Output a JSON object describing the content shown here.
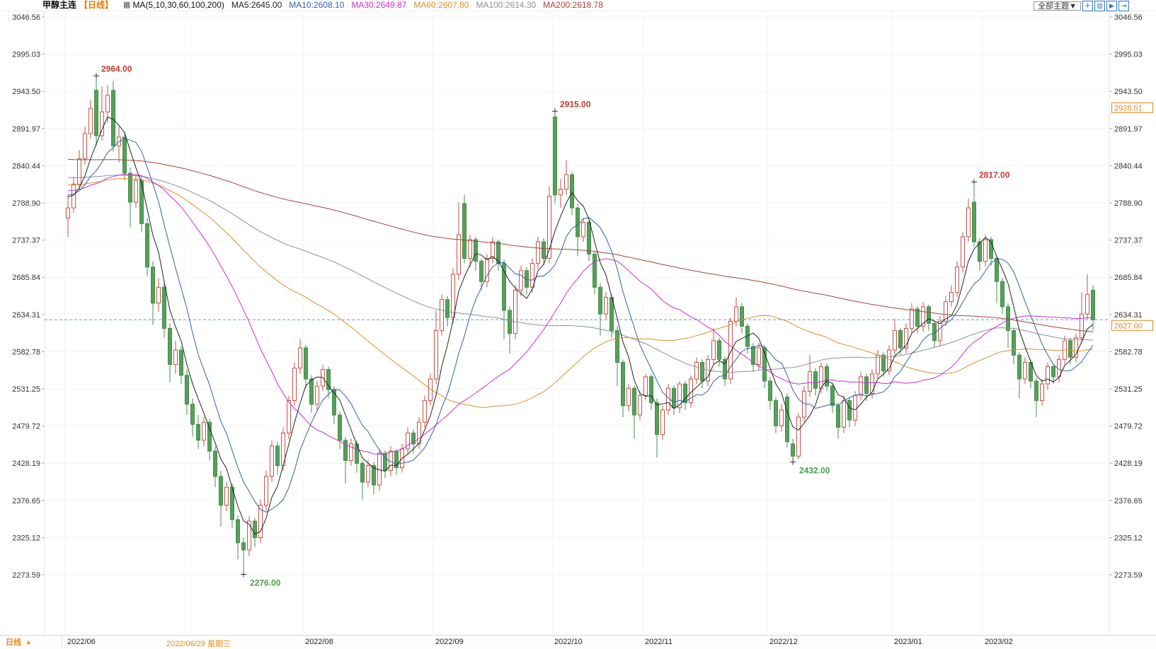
{
  "header": {
    "instrument": "甲醇主连",
    "period_tag": "【日线】",
    "indicator_icon": "▦",
    "ma_caption": "MA(5,10,30,60,100,200)"
  },
  "toolbar": {
    "theme_button": "全部主题▼",
    "icons": [
      {
        "name": "pan-icon",
        "glyph": "✛"
      },
      {
        "name": "scale-axis-icon",
        "glyph": "▥"
      },
      {
        "name": "play-forward-icon",
        "glyph": "▶"
      },
      {
        "name": "jump-latest-icon",
        "glyph": "⇥"
      }
    ]
  },
  "footer": {
    "period_label": "日线",
    "arrow": "▲"
  },
  "axis": {
    "price_levels": [
      3046.56,
      2995.03,
      2943.5,
      2891.97,
      2840.44,
      2788.9,
      2737.37,
      2685.84,
      2634.31,
      2582.78,
      2531.25,
      2479.72,
      2428.19,
      2376.65,
      2325.12,
      2273.59
    ],
    "highlight_labels": [
      {
        "text": "2928.51",
        "price": 2928.51
      },
      {
        "text": "2627.00",
        "price": 2627.0
      }
    ]
  },
  "chart_data": {
    "type": "candlestick",
    "title": "甲醇主连 日线",
    "interval": "daily",
    "ylim": [
      2222.06,
      3046.56
    ],
    "grid": true,
    "last_price": 2627.0,
    "dashed_line_price": 2627.0,
    "months": [
      {
        "label": "2022/06",
        "start_index": 0
      },
      {
        "label": "2022/06/29 星期三",
        "start_index": 21,
        "selected": true
      },
      {
        "label": "2022/08",
        "start_index": 42
      },
      {
        "label": "2022/09",
        "start_index": 65
      },
      {
        "label": "2022/10",
        "start_index": 86
      },
      {
        "label": "2022/11",
        "start_index": 102
      },
      {
        "label": "2022/12",
        "start_index": 124
      },
      {
        "label": "2023/01",
        "start_index": 146
      },
      {
        "label": "2023/02",
        "start_index": 162
      }
    ],
    "annotations": [
      {
        "index": 5,
        "kind": "high",
        "text": "2964.00",
        "price": 2964
      },
      {
        "index": 86,
        "kind": "high",
        "text": "2915.00",
        "price": 2915
      },
      {
        "index": 160,
        "kind": "high",
        "text": "2817.00",
        "price": 2817
      },
      {
        "index": 31,
        "kind": "low",
        "text": "2276.00",
        "price": 2276
      },
      {
        "index": 128,
        "kind": "low",
        "text": "2432.00",
        "price": 2432
      }
    ],
    "ma_lines": [
      {
        "period": 5,
        "label": "MA5:2645.00",
        "value": 2645.0,
        "color": "#222222"
      },
      {
        "period": 10,
        "label": "MA10:2608.10",
        "value": 2608.1,
        "color": "#2f62a8"
      },
      {
        "period": 30,
        "label": "MA30:2649.87",
        "value": 2649.87,
        "color": "#cc2fcf"
      },
      {
        "period": 60,
        "label": "MA60:2607.80",
        "value": 2607.8,
        "color": "#db8f2d"
      },
      {
        "period": 100,
        "label": "MA100:2614.30",
        "value": 2614.3,
        "color": "#8a9099"
      },
      {
        "period": 200,
        "label": "MA200:2618.78",
        "value": 2618.78,
        "color": "#a8433a"
      }
    ],
    "candles": [
      [
        2768,
        2800,
        2742,
        2782
      ],
      [
        2782,
        2825,
        2775,
        2815
      ],
      [
        2815,
        2862,
        2808,
        2850
      ],
      [
        2850,
        2895,
        2842,
        2885
      ],
      [
        2885,
        2932,
        2878,
        2920
      ],
      [
        2945,
        2964,
        2868,
        2882
      ],
      [
        2882,
        2950,
        2875,
        2915
      ],
      [
        2915,
        2952,
        2900,
        2938
      ],
      [
        2945,
        2958,
        2860,
        2868
      ],
      [
        2868,
        2895,
        2845,
        2880
      ],
      [
        2880,
        2888,
        2820,
        2830
      ],
      [
        2830,
        2838,
        2755,
        2790
      ],
      [
        2790,
        2828,
        2782,
        2820
      ],
      [
        2820,
        2825,
        2748,
        2760
      ],
      [
        2760,
        2768,
        2688,
        2700
      ],
      [
        2700,
        2708,
        2620,
        2650
      ],
      [
        2650,
        2685,
        2638,
        2672
      ],
      [
        2672,
        2678,
        2602,
        2615
      ],
      [
        2615,
        2622,
        2540,
        2565
      ],
      [
        2565,
        2598,
        2552,
        2585
      ],
      [
        2585,
        2590,
        2538,
        2550
      ],
      [
        2550,
        2558,
        2495,
        2510
      ],
      [
        2510,
        2518,
        2465,
        2482
      ],
      [
        2482,
        2495,
        2448,
        2460
      ],
      [
        2460,
        2492,
        2452,
        2485
      ],
      [
        2485,
        2490,
        2432,
        2445
      ],
      [
        2445,
        2452,
        2395,
        2410
      ],
      [
        2410,
        2418,
        2340,
        2370
      ],
      [
        2370,
        2402,
        2362,
        2395
      ],
      [
        2395,
        2400,
        2338,
        2350
      ],
      [
        2350,
        2356,
        2295,
        2318
      ],
      [
        2318,
        2325,
        2276,
        2308
      ],
      [
        2308,
        2355,
        2300,
        2348
      ],
      [
        2348,
        2352,
        2312,
        2325
      ],
      [
        2325,
        2378,
        2318,
        2370
      ],
      [
        2370,
        2418,
        2362,
        2410
      ],
      [
        2410,
        2460,
        2402,
        2452
      ],
      [
        2452,
        2458,
        2412,
        2425
      ],
      [
        2425,
        2478,
        2418,
        2470
      ],
      [
        2470,
        2522,
        2462,
        2515
      ],
      [
        2515,
        2568,
        2508,
        2560
      ],
      [
        2560,
        2600,
        2552,
        2588
      ],
      [
        2588,
        2592,
        2532,
        2545
      ],
      [
        2545,
        2550,
        2498,
        2510
      ],
      [
        2510,
        2542,
        2502,
        2535
      ],
      [
        2535,
        2565,
        2528,
        2558
      ],
      [
        2558,
        2562,
        2518,
        2530
      ],
      [
        2530,
        2535,
        2482,
        2495
      ],
      [
        2495,
        2500,
        2448,
        2460
      ],
      [
        2460,
        2465,
        2400,
        2432
      ],
      [
        2432,
        2462,
        2425,
        2455
      ],
      [
        2455,
        2460,
        2415,
        2428
      ],
      [
        2428,
        2432,
        2378,
        2402
      ],
      [
        2402,
        2432,
        2395,
        2425
      ],
      [
        2425,
        2430,
        2385,
        2398
      ],
      [
        2398,
        2448,
        2390,
        2442
      ],
      [
        2442,
        2446,
        2408,
        2418
      ],
      [
        2418,
        2452,
        2410,
        2445
      ],
      [
        2445,
        2448,
        2412,
        2422
      ],
      [
        2422,
        2455,
        2415,
        2448
      ],
      [
        2448,
        2478,
        2440,
        2470
      ],
      [
        2470,
        2475,
        2442,
        2455
      ],
      [
        2455,
        2492,
        2448,
        2485
      ],
      [
        2485,
        2522,
        2478,
        2515
      ],
      [
        2515,
        2552,
        2508,
        2545
      ],
      [
        2545,
        2640,
        2538,
        2612
      ],
      [
        2612,
        2662,
        2605,
        2655
      ],
      [
        2655,
        2660,
        2618,
        2630
      ],
      [
        2630,
        2698,
        2622,
        2690
      ],
      [
        2690,
        2790,
        2682,
        2745
      ],
      [
        2788,
        2800,
        2705,
        2712
      ],
      [
        2712,
        2745,
        2700,
        2738
      ],
      [
        2738,
        2742,
        2695,
        2708
      ],
      [
        2708,
        2712,
        2668,
        2680
      ],
      [
        2680,
        2718,
        2672,
        2712
      ],
      [
        2712,
        2742,
        2705,
        2735
      ],
      [
        2735,
        2738,
        2695,
        2705
      ],
      [
        2705,
        2710,
        2600,
        2640
      ],
      [
        2640,
        2645,
        2580,
        2608
      ],
      [
        2608,
        2675,
        2600,
        2668
      ],
      [
        2668,
        2702,
        2660,
        2695
      ],
      [
        2695,
        2700,
        2662,
        2672
      ],
      [
        2672,
        2712,
        2665,
        2705
      ],
      [
        2705,
        2742,
        2698,
        2735
      ],
      [
        2735,
        2740,
        2702,
        2712
      ],
      [
        2712,
        2812,
        2705,
        2798
      ],
      [
        2908,
        2915,
        2788,
        2800
      ],
      [
        2800,
        2822,
        2782,
        2808
      ],
      [
        2808,
        2848,
        2800,
        2828
      ],
      [
        2828,
        2832,
        2772,
        2782
      ],
      [
        2782,
        2788,
        2715,
        2742
      ],
      [
        2742,
        2768,
        2735,
        2762
      ],
      [
        2762,
        2766,
        2708,
        2718
      ],
      [
        2718,
        2722,
        2662,
        2672
      ],
      [
        2672,
        2678,
        2605,
        2635
      ],
      [
        2635,
        2665,
        2628,
        2658
      ],
      [
        2658,
        2662,
        2602,
        2612
      ],
      [
        2612,
        2618,
        2535,
        2568
      ],
      [
        2568,
        2572,
        2492,
        2508
      ],
      [
        2508,
        2538,
        2500,
        2532
      ],
      [
        2532,
        2536,
        2462,
        2495
      ],
      [
        2495,
        2528,
        2488,
        2522
      ],
      [
        2522,
        2552,
        2515,
        2548
      ],
      [
        2548,
        2552,
        2502,
        2512
      ],
      [
        2512,
        2518,
        2436,
        2468
      ],
      [
        2468,
        2508,
        2460,
        2502
      ],
      [
        2502,
        2538,
        2495,
        2532
      ],
      [
        2532,
        2536,
        2495,
        2505
      ],
      [
        2505,
        2542,
        2498,
        2538
      ],
      [
        2538,
        2542,
        2502,
        2512
      ],
      [
        2512,
        2550,
        2505,
        2545
      ],
      [
        2545,
        2575,
        2538,
        2568
      ],
      [
        2568,
        2572,
        2532,
        2542
      ],
      [
        2542,
        2578,
        2535,
        2572
      ],
      [
        2572,
        2615,
        2565,
        2598
      ],
      [
        2598,
        2602,
        2562,
        2572
      ],
      [
        2572,
        2576,
        2535,
        2545
      ],
      [
        2545,
        2630,
        2538,
        2625
      ],
      [
        2625,
        2658,
        2618,
        2645
      ],
      [
        2645,
        2650,
        2608,
        2618
      ],
      [
        2618,
        2622,
        2580,
        2590
      ],
      [
        2590,
        2595,
        2555,
        2565
      ],
      [
        2565,
        2595,
        2558,
        2588
      ],
      [
        2588,
        2592,
        2532,
        2542
      ],
      [
        2542,
        2548,
        2502,
        2515
      ],
      [
        2515,
        2520,
        2470,
        2480
      ],
      [
        2480,
        2510,
        2472,
        2502
      ],
      [
        2520,
        2525,
        2450,
        2458
      ],
      [
        2455,
        2462,
        2432,
        2438
      ],
      [
        2438,
        2498,
        2434,
        2492
      ],
      [
        2492,
        2535,
        2485,
        2528
      ],
      [
        2528,
        2578,
        2520,
        2555
      ],
      [
        2555,
        2560,
        2522,
        2532
      ],
      [
        2532,
        2568,
        2525,
        2562
      ],
      [
        2562,
        2566,
        2528,
        2535
      ],
      [
        2535,
        2540,
        2498,
        2508
      ],
      [
        2508,
        2512,
        2462,
        2478
      ],
      [
        2478,
        2522,
        2470,
        2515
      ],
      [
        2515,
        2520,
        2478,
        2488
      ],
      [
        2488,
        2528,
        2480,
        2522
      ],
      [
        2522,
        2555,
        2515,
        2548
      ],
      [
        2548,
        2552,
        2515,
        2525
      ],
      [
        2525,
        2558,
        2518,
        2552
      ],
      [
        2552,
        2585,
        2545,
        2578
      ],
      [
        2578,
        2582,
        2548,
        2556
      ],
      [
        2556,
        2592,
        2550,
        2585
      ],
      [
        2585,
        2628,
        2578,
        2612
      ],
      [
        2612,
        2616,
        2578,
        2588
      ],
      [
        2588,
        2622,
        2580,
        2615
      ],
      [
        2615,
        2650,
        2608,
        2642
      ],
      [
        2642,
        2646,
        2608,
        2618
      ],
      [
        2618,
        2652,
        2610,
        2645
      ],
      [
        2645,
        2648,
        2612,
        2622
      ],
      [
        2622,
        2626,
        2588,
        2598
      ],
      [
        2598,
        2632,
        2590,
        2625
      ],
      [
        2625,
        2660,
        2618,
        2652
      ],
      [
        2652,
        2675,
        2645,
        2665
      ],
      [
        2665,
        2708,
        2658,
        2700
      ],
      [
        2700,
        2748,
        2692,
        2742
      ],
      [
        2742,
        2795,
        2735,
        2782
      ],
      [
        2790,
        2817,
        2728,
        2735
      ],
      [
        2735,
        2740,
        2695,
        2708
      ],
      [
        2708,
        2745,
        2700,
        2738
      ],
      [
        2738,
        2742,
        2702,
        2712
      ],
      [
        2712,
        2716,
        2650,
        2680
      ],
      [
        2680,
        2685,
        2635,
        2645
      ],
      [
        2645,
        2650,
        2588,
        2612
      ],
      [
        2612,
        2616,
        2565,
        2578
      ],
      [
        2578,
        2582,
        2518,
        2545
      ],
      [
        2545,
        2575,
        2538,
        2568
      ],
      [
        2568,
        2572,
        2532,
        2542
      ],
      [
        2542,
        2546,
        2492,
        2515
      ],
      [
        2515,
        2545,
        2508,
        2538
      ],
      [
        2538,
        2568,
        2530,
        2562
      ],
      [
        2562,
        2566,
        2538,
        2548
      ],
      [
        2548,
        2578,
        2540,
        2572
      ],
      [
        2572,
        2605,
        2565,
        2598
      ],
      [
        2598,
        2602,
        2565,
        2575
      ],
      [
        2575,
        2608,
        2568,
        2602
      ],
      [
        2602,
        2665,
        2595,
        2635
      ],
      [
        2635,
        2690,
        2628,
        2662
      ],
      [
        2668,
        2675,
        2612,
        2627
      ]
    ]
  },
  "colors": {
    "up_stroke": "#c4524a",
    "up_fill": "#ffffff",
    "down_stroke": "#468c4b",
    "down_fill": "#55a05a",
    "dashed_line": "#5b9bd5",
    "highlight": "#e8891a",
    "annotation_high": "#c23b32",
    "annotation_low": "#4aa04a",
    "grid": "#f1f3f6",
    "axis_text": "#333333"
  }
}
